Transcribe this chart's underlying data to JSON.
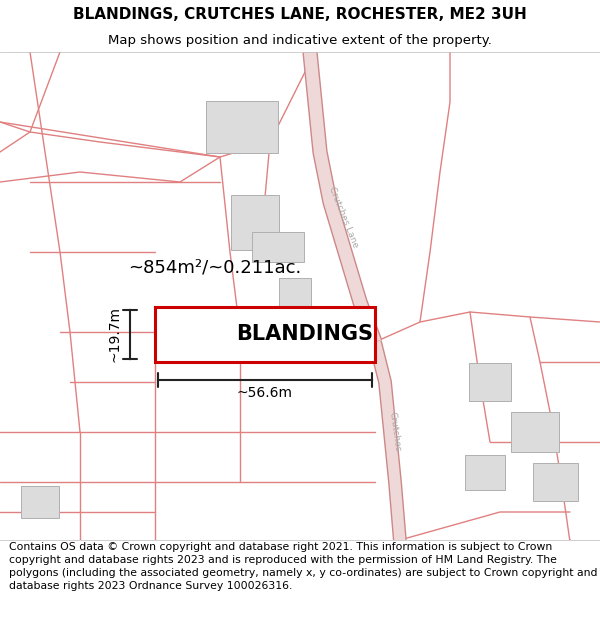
{
  "title": "BLANDINGS, CRUTCHES LANE, ROCHESTER, ME2 3UH",
  "subtitle": "Map shows position and indicative extent of the property.",
  "footer": "Contains OS data © Crown copyright and database right 2021. This information is subject to Crown copyright and database rights 2023 and is reproduced with the permission of HM Land Registry. The polygons (including the associated geometry, namely x, y co-ordinates) are subject to Crown copyright and database rights 2023 Ordnance Survey 100026316.",
  "property_label": "BLANDINGS",
  "area_label": "~854m²/~0.211ac.",
  "width_label": "~56.6m",
  "height_label": "~19.7m",
  "map_bg": "#ffffff",
  "line_color": "#e08080",
  "road_fill": "#e8c8c8",
  "road_edge": "#c87070",
  "building_color": "#dcdcdc",
  "building_edge": "#b0b0b0",
  "property_edge": "#cc0000",
  "dim_color": "#222222",
  "road_label_color": "#aaaaaa",
  "title_fontsize": 11,
  "subtitle_fontsize": 9.5,
  "footer_fontsize": 7.8,
  "property_label_fontsize": 15,
  "area_label_fontsize": 13,
  "dim_label_fontsize": 10,
  "line_lw": 1.0,
  "road_lw": 7
}
